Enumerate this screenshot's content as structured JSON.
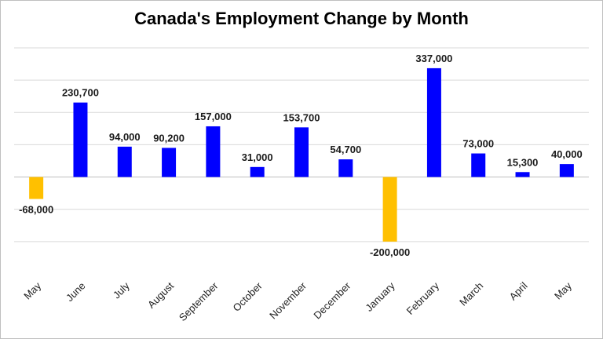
{
  "chart_data": {
    "type": "bar",
    "title": "Canada's Employment Change by Month",
    "xlabel": "",
    "ylabel": "",
    "categories": [
      "May",
      "June",
      "July",
      "August",
      "September",
      "October",
      "November",
      "December",
      "January",
      "February",
      "March",
      "April",
      "May"
    ],
    "values": [
      -68000,
      230700,
      94000,
      90200,
      157000,
      31000,
      153700,
      54700,
      -200000,
      337000,
      73000,
      15300,
      40000
    ],
    "value_labels": [
      "-68,000",
      "230,700",
      "94,000",
      "90,200",
      "157,000",
      "31,000",
      "153,700",
      "54,700",
      "-200,000",
      "337,000",
      "73,000",
      "15,300",
      "40,000"
    ],
    "ylim": [
      -300000,
      400000
    ],
    "grid": true,
    "gridline_step": 100000,
    "legend": "none",
    "colors": {
      "positive": "#0000ff",
      "negative": "#ffc000",
      "grid": "#d9d9d9",
      "axis": "#bfbfbf",
      "frame": "#bfbfbf"
    }
  }
}
